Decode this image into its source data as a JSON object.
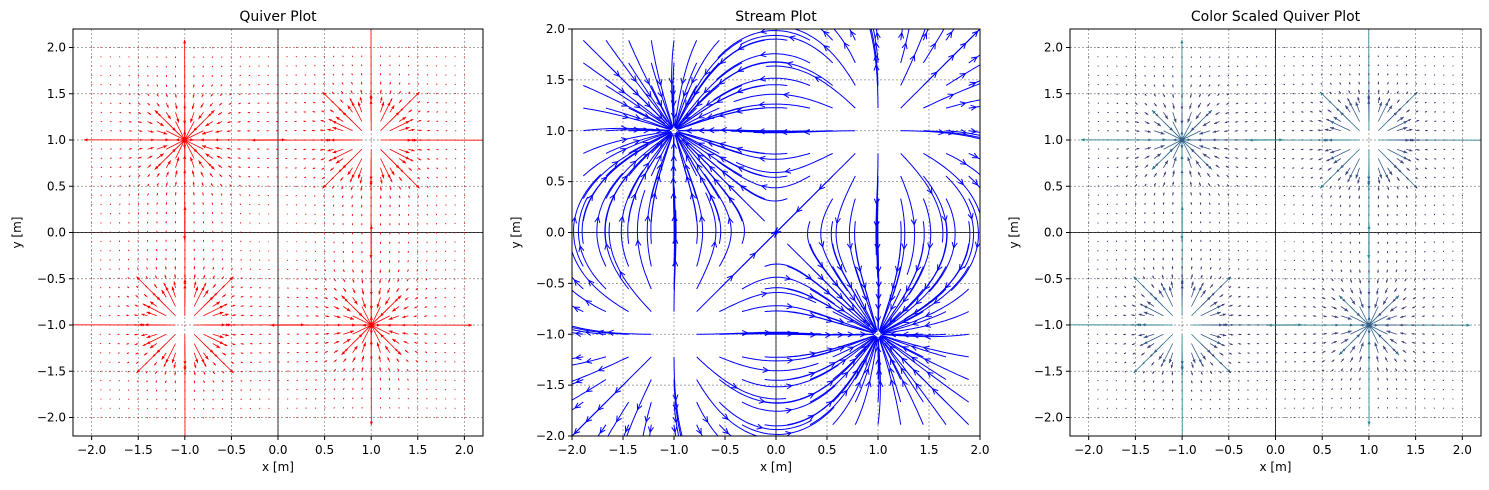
{
  "chart_data": [
    {
      "type": "quiver",
      "title": "Quiver Plot",
      "xlabel": "x [m]",
      "ylabel": "y [m]",
      "xlim": [
        -2.2,
        2.2
      ],
      "ylim": [
        -2.2,
        2.2
      ],
      "xticks": [
        -2.0,
        -1.5,
        -1.0,
        -0.5,
        0.0,
        0.5,
        1.0,
        1.5,
        2.0
      ],
      "yticks": [
        -2.0,
        -1.5,
        -1.0,
        -0.5,
        0.0,
        0.5,
        1.0,
        1.5,
        2.0
      ],
      "grid": true,
      "color": "#ff0000",
      "charges": [
        {
          "x": 1,
          "y": 1,
          "sign": "source"
        },
        {
          "x": -1,
          "y": -1,
          "sign": "source"
        },
        {
          "x": -1,
          "y": 1,
          "sign": "sink"
        },
        {
          "x": 1,
          "y": -1,
          "sign": "sink"
        }
      ]
    },
    {
      "type": "stream",
      "title": "Stream Plot",
      "xlabel": "x [m]",
      "ylabel": "y [m]",
      "xlim": [
        -2.0,
        2.0
      ],
      "ylim": [
        -2.0,
        2.0
      ],
      "xticks": [
        -2.0,
        -1.5,
        -1.0,
        -0.5,
        0.0,
        0.5,
        1.0,
        1.5,
        2.0
      ],
      "yticks": [
        -2.0,
        -1.5,
        -1.0,
        -0.5,
        0.0,
        0.5,
        1.0,
        1.5,
        2.0
      ],
      "grid": true,
      "color": "#0000ff",
      "charges": [
        {
          "x": 1,
          "y": 1,
          "sign": "source"
        },
        {
          "x": -1,
          "y": -1,
          "sign": "source"
        },
        {
          "x": -1,
          "y": 1,
          "sign": "sink"
        },
        {
          "x": 1,
          "y": -1,
          "sign": "sink"
        }
      ]
    },
    {
      "type": "quiver",
      "title": "Color Scaled Quiver Plot",
      "xlabel": "x [m]",
      "ylabel": "y [m]",
      "xlim": [
        -2.2,
        2.2
      ],
      "ylim": [
        -2.2,
        2.2
      ],
      "xticks": [
        -2.0,
        -1.5,
        -1.0,
        -0.5,
        0.0,
        0.5,
        1.0,
        1.5,
        2.0
      ],
      "yticks": [
        -2.0,
        -1.5,
        -1.0,
        -0.5,
        0.0,
        0.5,
        1.0,
        1.5,
        2.0
      ],
      "grid": true,
      "colormap": "viridis",
      "colors": [
        "#440154",
        "#3b528b",
        "#21918c",
        "#5ec962",
        "#fde725"
      ],
      "charges": [
        {
          "x": 1,
          "y": 1,
          "sign": "source"
        },
        {
          "x": -1,
          "y": -1,
          "sign": "source"
        },
        {
          "x": -1,
          "y": 1,
          "sign": "sink"
        },
        {
          "x": 1,
          "y": -1,
          "sign": "sink"
        }
      ]
    }
  ]
}
